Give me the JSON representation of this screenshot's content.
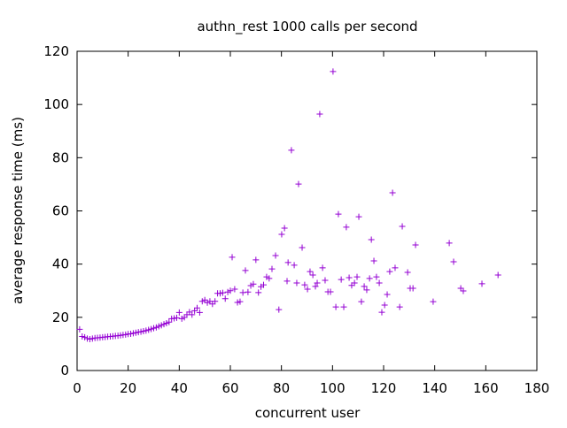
{
  "chart_data": {
    "type": "scatter",
    "title": "authn_rest 1000 calls per second",
    "xlabel": "concurrent user",
    "ylabel": "average response time (ms)",
    "xlim": [
      0,
      180
    ],
    "ylim": [
      0,
      120
    ],
    "xticks": [
      0,
      20,
      40,
      60,
      80,
      100,
      120,
      140,
      160,
      180
    ],
    "yticks": [
      0,
      20,
      40,
      60,
      80,
      100,
      120
    ],
    "grid": false,
    "marker": "plus",
    "color": "#9400d3",
    "points": [
      [
        1,
        15.5
      ],
      [
        2,
        12.8
      ],
      [
        3,
        12.5
      ],
      [
        4,
        12
      ],
      [
        5,
        11.8
      ],
      [
        6,
        12
      ],
      [
        7,
        12.2
      ],
      [
        8,
        12.3
      ],
      [
        9,
        12.4
      ],
      [
        10,
        12.5
      ],
      [
        11,
        12.6
      ],
      [
        12,
        12.7
      ],
      [
        13,
        12.8
      ],
      [
        14,
        12.9
      ],
      [
        15,
        13
      ],
      [
        16,
        13.1
      ],
      [
        17,
        13.2
      ],
      [
        18,
        13.4
      ],
      [
        19,
        13.5
      ],
      [
        20,
        13.7
      ],
      [
        21,
        13.8
      ],
      [
        22,
        14
      ],
      [
        23,
        14.2
      ],
      [
        24,
        14.4
      ],
      [
        25,
        14.6
      ],
      [
        26,
        14.8
      ],
      [
        27,
        15
      ],
      [
        28,
        15.3
      ],
      [
        29,
        15.6
      ],
      [
        30,
        15.9
      ],
      [
        31,
        16.2
      ],
      [
        32,
        16.6
      ],
      [
        33,
        17
      ],
      [
        34,
        17.4
      ],
      [
        35,
        17.8
      ],
      [
        36,
        18.2
      ],
      [
        37,
        19.5
      ],
      [
        38,
        19.6
      ],
      [
        39,
        19.8
      ],
      [
        40,
        21.8
      ],
      [
        41,
        19.5
      ],
      [
        42,
        20
      ],
      [
        43,
        21
      ],
      [
        44,
        22
      ],
      [
        45,
        21
      ],
      [
        46,
        22.5
      ],
      [
        47,
        23.5
      ],
      [
        48,
        21.8
      ],
      [
        49,
        26
      ],
      [
        50,
        26.5
      ],
      [
        51,
        25.5
      ],
      [
        52,
        26
      ],
      [
        53,
        25
      ],
      [
        54,
        26
      ],
      [
        55,
        29
      ],
      [
        56,
        29
      ],
      [
        57,
        29.2
      ],
      [
        58,
        27
      ],
      [
        59,
        29.5
      ],
      [
        60,
        30
      ],
      [
        60.7,
        42.6
      ],
      [
        61.7,
        30.6
      ],
      [
        62.8,
        25.6
      ],
      [
        63.8,
        25.9
      ],
      [
        64.9,
        29.3
      ],
      [
        65.9,
        37.6
      ],
      [
        66.9,
        29.5
      ],
      [
        68,
        31.9
      ],
      [
        69,
        32.5
      ],
      [
        70,
        41.6
      ],
      [
        71,
        29.3
      ],
      [
        72,
        31.5
      ],
      [
        73,
        32.2
      ],
      [
        74.2,
        35.2
      ],
      [
        75.2,
        34.6
      ],
      [
        76.3,
        38.2
      ],
      [
        77.7,
        43.2
      ],
      [
        79,
        22.9
      ],
      [
        80.1,
        51.2
      ],
      [
        81.2,
        53.5
      ],
      [
        82.2,
        33.6
      ],
      [
        82.6,
        40.6
      ],
      [
        83.9,
        82.8
      ],
      [
        85,
        39.6
      ],
      [
        86,
        32.9
      ],
      [
        86.7,
        70.1
      ],
      [
        88.1,
        46.2
      ],
      [
        89.1,
        32.2
      ],
      [
        90.2,
        30.6
      ],
      [
        91.2,
        37.2
      ],
      [
        92.3,
        35.9
      ],
      [
        93.3,
        31.6
      ],
      [
        94,
        32.9
      ],
      [
        95,
        96.4
      ],
      [
        96.1,
        38.6
      ],
      [
        97.1,
        33.9
      ],
      [
        98.2,
        29.6
      ],
      [
        99.2,
        29.6
      ],
      [
        100.2,
        112.4
      ],
      [
        101.3,
        23.9
      ],
      [
        102.3,
        58.8
      ],
      [
        103.4,
        34.2
      ],
      [
        104.4,
        23.9
      ],
      [
        105.4,
        53.9
      ],
      [
        106.5,
        34.9
      ],
      [
        107.5,
        32
      ],
      [
        108.6,
        32.9
      ],
      [
        109.6,
        35.2
      ],
      [
        110.3,
        57.8
      ],
      [
        111.3,
        25.9
      ],
      [
        112.4,
        31.6
      ],
      [
        113.4,
        30.3
      ],
      [
        114.5,
        34.6
      ],
      [
        115.2,
        49.2
      ],
      [
        116.2,
        41.2
      ],
      [
        117.2,
        35.2
      ],
      [
        118.3,
        32.9
      ],
      [
        119.3,
        21.9
      ],
      [
        120.4,
        24.6
      ],
      [
        121.4,
        28.6
      ],
      [
        122.4,
        37.2
      ],
      [
        123.5,
        66.8
      ],
      [
        124.5,
        38.6
      ],
      [
        126.3,
        23.9
      ],
      [
        127.3,
        54.2
      ],
      [
        129.4,
        36.9
      ],
      [
        130.4,
        30.9
      ],
      [
        131.5,
        30.9
      ],
      [
        132.5,
        47.2
      ],
      [
        139.4,
        25.9
      ],
      [
        145.7,
        47.9
      ],
      [
        147.4,
        40.9
      ],
      [
        150.2,
        30.9
      ],
      [
        151.2,
        29.9
      ],
      [
        158.5,
        32.6
      ],
      [
        164.8,
        35.9
      ]
    ]
  }
}
